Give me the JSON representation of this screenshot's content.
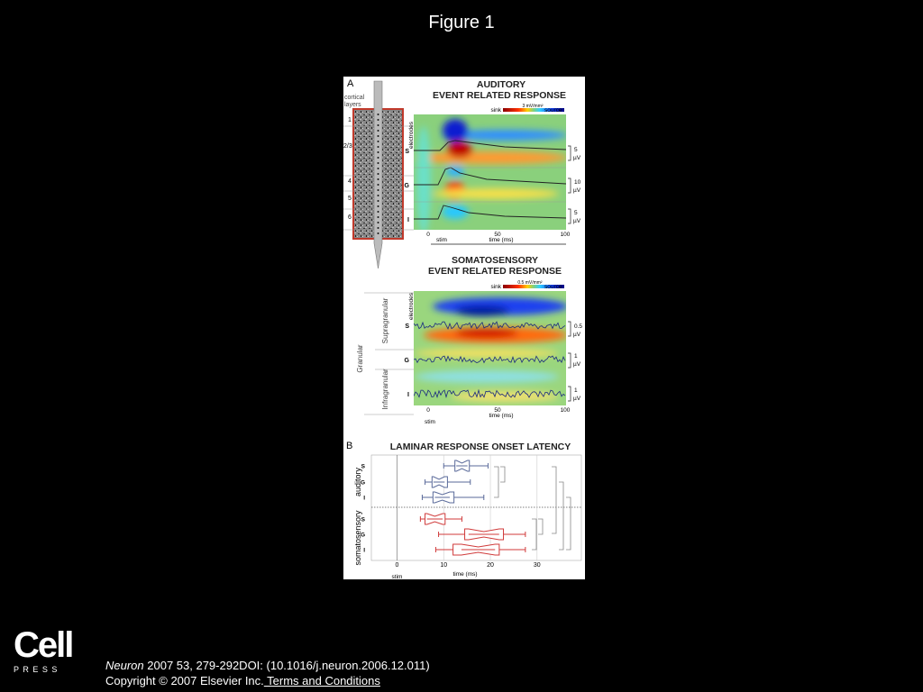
{
  "title": "Figure 1",
  "figure": {
    "panel_a": {
      "label": "A",
      "cortex": {
        "heading": [
          "cortical",
          "layers"
        ],
        "layers": [
          "1",
          "2/3",
          "4",
          "5",
          "6"
        ]
      },
      "auditory": {
        "title": [
          "AUDITORY",
          "EVENT RELATED RESPONSE"
        ],
        "colorbar": {
          "sink": "sink",
          "scale": "3 mV/mm²",
          "source": "source"
        },
        "y_label": "electrodes",
        "rows": [
          "S",
          "G",
          "I"
        ],
        "scales": [
          [
            "5",
            "µV"
          ],
          [
            "10",
            "µV"
          ],
          [
            "5",
            "µV"
          ]
        ],
        "xticks": [
          "0",
          "50",
          "100"
        ],
        "x_label": "time (ms)",
        "stim": "stim"
      },
      "somatosensory": {
        "title": [
          "SOMATOSENSORY",
          "EVENT RELATED RESPONSE"
        ],
        "colorbar": {
          "sink": "sink",
          "scale": "0.5 mV/mm²",
          "source": "source"
        },
        "y_label": "electrodes",
        "rows": [
          "S",
          "G",
          "I"
        ],
        "scales": [
          [
            "0.5",
            "µV"
          ],
          [
            "1",
            "µV"
          ],
          [
            "1",
            "µV"
          ]
        ],
        "layer_names": [
          "Supragranular",
          "Granular",
          "Infragranular"
        ],
        "xticks": [
          "0",
          "50",
          "100"
        ],
        "x_label": "time (ms)",
        "stim": "stim"
      }
    },
    "panel_b": {
      "label": "B",
      "type": "box",
      "title": "LAMINAR RESPONSE ONSET LATENCY",
      "groups": [
        {
          "name": "auditory",
          "color": "#5a6a9a"
        },
        {
          "name": "somatosensory",
          "color": "#d03a3a"
        }
      ],
      "categories": [
        "S",
        "G",
        "I",
        "S",
        "G",
        "I"
      ],
      "group_of": [
        0,
        0,
        0,
        1,
        1,
        1
      ],
      "boxes": [
        {
          "min": 10,
          "q1": 12.4,
          "median": 13.9,
          "q3": 15.5,
          "max": 19.5
        },
        {
          "min": 6,
          "q1": 7.5,
          "median": 9,
          "q3": 10.8,
          "max": 15.7
        },
        {
          "min": 5.4,
          "q1": 7.7,
          "median": 9.7,
          "q3": 12.2,
          "max": 18.6
        },
        {
          "min": 5,
          "q1": 6,
          "median": 8.1,
          "q3": 10.3,
          "max": 13.9
        },
        {
          "min": 8.9,
          "q1": 14.5,
          "median": 18.6,
          "q3": 22.8,
          "max": 27.5
        },
        {
          "min": 8.3,
          "q1": 12,
          "median": 17.4,
          "q3": 21.9,
          "max": 27.5
        }
      ],
      "xlim": [
        -5.5,
        39.5
      ],
      "xticks": [
        0,
        10,
        20,
        30
      ],
      "x_label": "time (ms)",
      "stim": "stim"
    }
  },
  "citation": {
    "journal": "Neuron",
    "details": " 2007 53, 279-292DOI: (10.1016/j.neuron.2006.12.011)"
  },
  "copyright": {
    "text": "Copyright © 2007 Elsevier Inc.",
    "link": " Terms and Conditions"
  },
  "logo": {
    "name": "Cell",
    "sub": "P R E S S"
  }
}
